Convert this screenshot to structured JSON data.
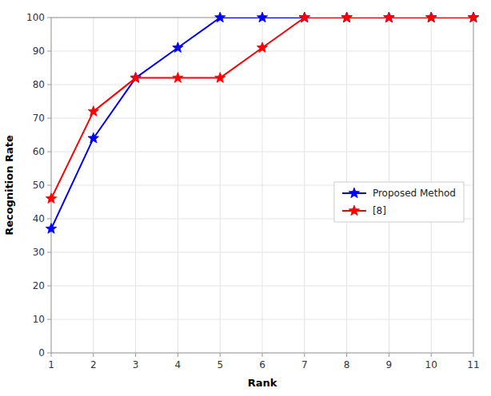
{
  "chart_data": {
    "type": "line",
    "xlabel": "Rank",
    "ylabel": "Recognition Rate",
    "x": [
      1,
      2,
      3,
      4,
      5,
      6,
      7,
      8,
      9,
      10,
      11
    ],
    "series": [
      {
        "name": "Proposed Method",
        "color": "#0000FF",
        "marker": "star",
        "values": [
          37,
          64,
          82,
          91,
          100,
          100,
          100,
          100,
          100,
          100,
          100
        ]
      },
      {
        "name": "[8]",
        "color": "#FF0000",
        "marker": "star",
        "values": [
          46,
          72,
          82,
          82,
          82,
          91,
          100,
          100,
          100,
          100,
          100
        ]
      }
    ],
    "xlim": [
      1,
      11
    ],
    "ylim": [
      0,
      100
    ],
    "xticks": [
      1,
      2,
      3,
      4,
      5,
      6,
      7,
      8,
      9,
      10,
      11
    ],
    "yticks": [
      0,
      10,
      20,
      30,
      40,
      50,
      60,
      70,
      80,
      90,
      100
    ],
    "grid": true,
    "legend": "right"
  }
}
